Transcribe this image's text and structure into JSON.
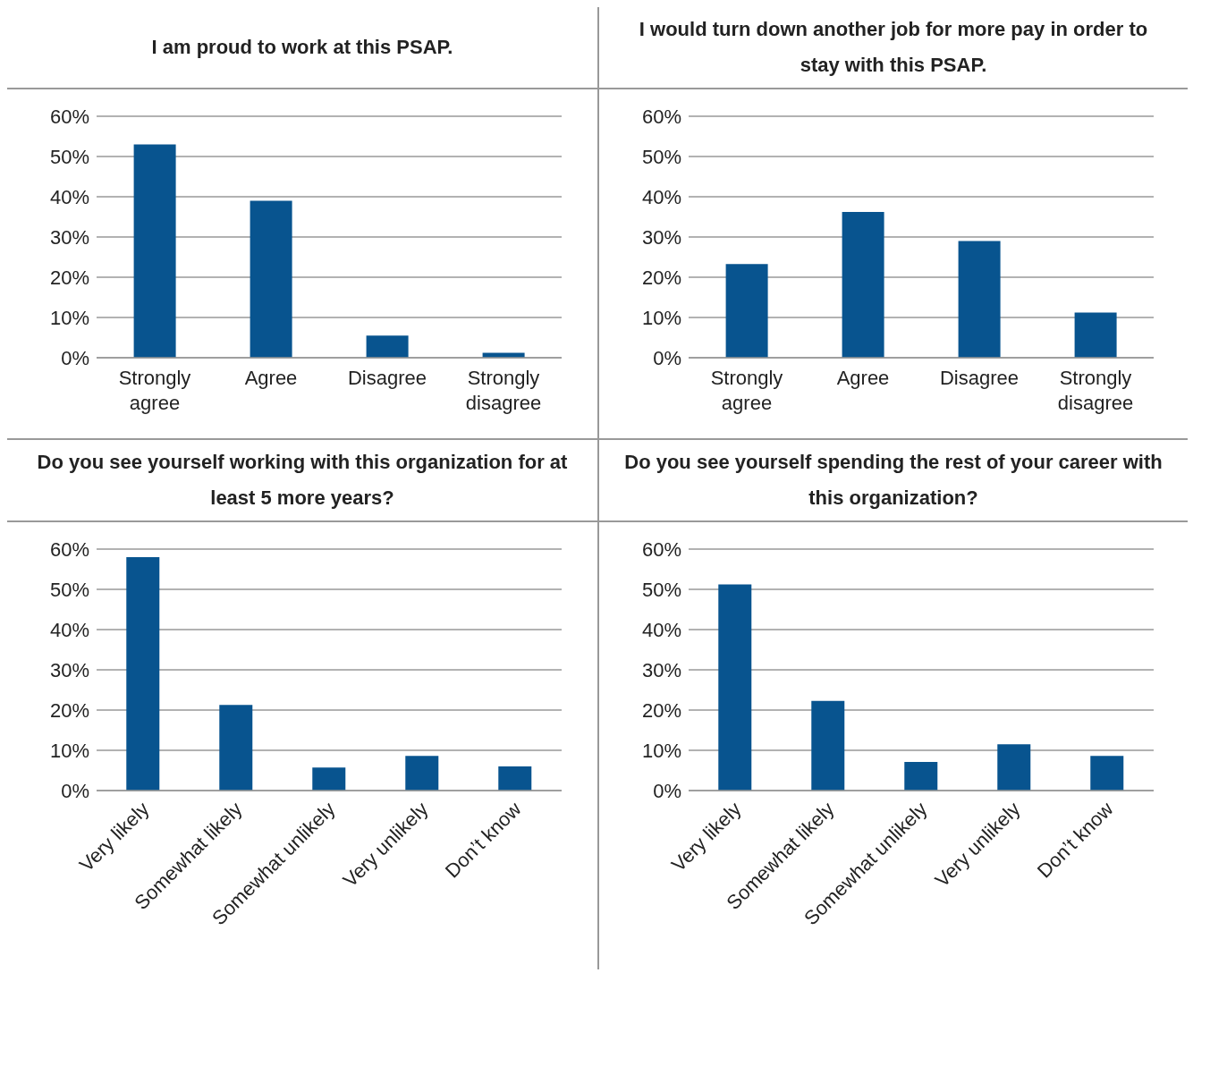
{
  "chart_data": [
    {
      "type": "bar",
      "title": "I am proud to work at this PSAP.",
      "categories": [
        "Strongly agree",
        "Agree",
        "Disagree",
        "Strongly disagree"
      ],
      "values": [
        53,
        39,
        5.5,
        1.2
      ],
      "color": "#08548f",
      "ylim": [
        0,
        60
      ],
      "yticks": [
        {
          "value": 0,
          "label": "0%"
        },
        {
          "value": 10,
          "label": "10%"
        },
        {
          "value": 20,
          "label": "20%"
        },
        {
          "value": 30,
          "label": "30%"
        },
        {
          "value": 40,
          "label": "40%"
        },
        {
          "value": 50,
          "label": "50%"
        },
        {
          "value": 60,
          "label": "60%"
        }
      ],
      "grid": "y",
      "legend": false
    },
    {
      "type": "bar",
      "title": "I would turn down another job for more pay in order to stay with this PSAP.",
      "categories": [
        "Strongly agree",
        "Agree",
        "Disagree",
        "Strongly disagree"
      ],
      "values": [
        23.3,
        36.2,
        29,
        11.2
      ],
      "color": "#08548f",
      "ylim": [
        0,
        60
      ],
      "yticks": [
        {
          "value": 0,
          "label": "0%"
        },
        {
          "value": 10,
          "label": "10%"
        },
        {
          "value": 20,
          "label": "20%"
        },
        {
          "value": 30,
          "label": "30%"
        },
        {
          "value": 40,
          "label": "40%"
        },
        {
          "value": 50,
          "label": "50%"
        },
        {
          "value": 60,
          "label": "60%"
        }
      ],
      "grid": "y",
      "legend": false
    },
    {
      "type": "bar",
      "title": "Do you see yourself working with this organization for at least 5 more years?",
      "categories": [
        "Very likely",
        "Somewhat likely",
        "Somewhat unlikely",
        "Very unlikely",
        "Don’t know"
      ],
      "values": [
        58,
        21.3,
        5.7,
        8.6,
        6
      ],
      "color": "#08548f",
      "ylim": [
        0,
        60
      ],
      "yticks": [
        {
          "value": 0,
          "label": "0%"
        },
        {
          "value": 10,
          "label": "10%"
        },
        {
          "value": 20,
          "label": "20%"
        },
        {
          "value": 30,
          "label": "30%"
        },
        {
          "value": 40,
          "label": "40%"
        },
        {
          "value": 50,
          "label": "50%"
        },
        {
          "value": 60,
          "label": "60%"
        }
      ],
      "grid": "y",
      "legend": false
    },
    {
      "type": "bar",
      "title": "Do you see yourself spending the rest of your career with this organization?",
      "categories": [
        "Very likely",
        "Somewhat likely",
        "Somewhat unlikely",
        "Very unlikely",
        "Don’t know"
      ],
      "values": [
        51.2,
        22.3,
        7.1,
        11.5,
        8.6
      ],
      "color": "#08548f",
      "ylim": [
        0,
        60
      ],
      "yticks": [
        {
          "value": 0,
          "label": "0%"
        },
        {
          "value": 10,
          "label": "10%"
        },
        {
          "value": 20,
          "label": "20%"
        },
        {
          "value": 30,
          "label": "30%"
        },
        {
          "value": 40,
          "label": "40%"
        },
        {
          "value": 50,
          "label": "50%"
        },
        {
          "value": 60,
          "label": "60%"
        }
      ],
      "grid": "y",
      "legend": false
    }
  ]
}
